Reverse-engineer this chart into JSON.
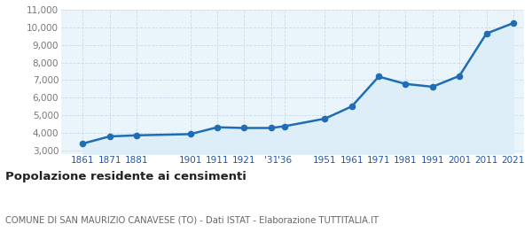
{
  "years": [
    1861,
    1871,
    1881,
    1901,
    1911,
    1921,
    1931,
    1936,
    1951,
    1961,
    1971,
    1981,
    1991,
    2001,
    2011,
    2021
  ],
  "population": [
    3380,
    3790,
    3850,
    3920,
    4310,
    4270,
    4270,
    4370,
    4800,
    5500,
    7200,
    6780,
    6620,
    7240,
    9650,
    10250
  ],
  "line_color": "#1e6db5",
  "fill_color": "#ddeef8",
  "marker_color": "#1e6db5",
  "grid_color": "#c8dcea",
  "background_color": "#eaf4fb",
  "title": "Popolazione residente ai censimenti",
  "subtitle": "COMUNE DI SAN MAURIZIO CANAVESE (TO) - Dati ISTAT - Elaborazione TUTTITALIA.IT",
  "ylim": [
    2800,
    11000
  ],
  "yticks": [
    3000,
    4000,
    5000,
    6000,
    7000,
    8000,
    9000,
    10000,
    11000
  ],
  "ytick_labels": [
    "3,000",
    "4,000",
    "5,000",
    "6,000",
    "7,000",
    "8,000",
    "9,000",
    "10,000",
    "11,000"
  ],
  "x_ticks_pos": [
    1861,
    1871,
    1881,
    1901,
    1911,
    1921,
    1931,
    1936,
    1951,
    1961,
    1971,
    1981,
    1991,
    2001,
    2011,
    2021
  ],
  "x_tick_labels": [
    "1861",
    "1871",
    "1881",
    "1901",
    "1911",
    "1921",
    "'31",
    "'36",
    "1951",
    "1961",
    "1971",
    "1981",
    "1991",
    "2001",
    "2011",
    "2021"
  ],
  "xlim": [
    1853,
    2025
  ],
  "fill_baseline": 2800
}
